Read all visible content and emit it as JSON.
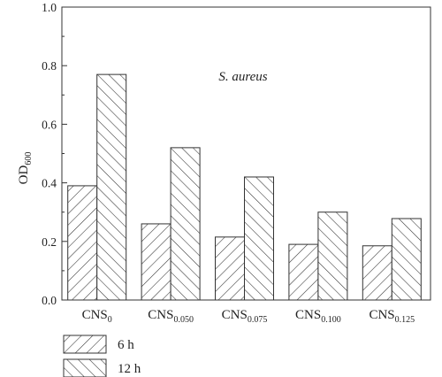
{
  "chart_data": {
    "type": "bar",
    "title": "",
    "annotation": "S. aureus",
    "ylabel_main": "OD",
    "ylabel_sub": "600",
    "xlabel": "",
    "ylim": [
      0,
      1.0
    ],
    "yticks": [
      "0.0",
      "0.2",
      "0.4",
      "0.6",
      "0.8",
      "1.0"
    ],
    "categories": [
      {
        "main": "CNS",
        "sub": "0"
      },
      {
        "main": "CNS",
        "sub": "0.050"
      },
      {
        "main": "CNS",
        "sub": "0.075"
      },
      {
        "main": "CNS",
        "sub": "0.100"
      },
      {
        "main": "CNS",
        "sub": "0.125"
      }
    ],
    "series": [
      {
        "name": "6 h",
        "values": [
          0.39,
          0.26,
          0.215,
          0.19,
          0.185
        ],
        "hatch": "forward"
      },
      {
        "name": "12 h",
        "values": [
          0.77,
          0.52,
          0.42,
          0.3,
          0.278
        ],
        "hatch": "backward"
      }
    ],
    "legend_position": "bottom-left",
    "colors": {
      "stroke": "#333333",
      "fill": "#ffffff"
    }
  }
}
